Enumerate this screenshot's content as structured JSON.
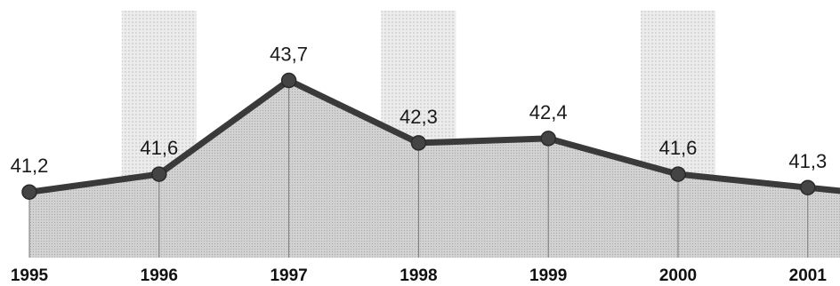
{
  "chart_data": {
    "type": "area",
    "title": "",
    "xlabel": "",
    "ylabel": "",
    "categories": [
      "1995",
      "1996",
      "1997",
      "1998",
      "1999",
      "2000",
      "2001"
    ],
    "series": [
      {
        "values": [
          41.2,
          41.6,
          43.7,
          42.3,
          42.4,
          41.6,
          41.3
        ]
      }
    ],
    "data_labels": [
      "41,2",
      "41,6",
      "43,7",
      "42,3",
      "42,4",
      "41,6",
      "41,3"
    ],
    "ylim": [
      38.5,
      45.5
    ],
    "grid": false,
    "legend": "none",
    "shaded_columns": [
      "1996",
      "1998",
      "2000"
    ],
    "colors": {
      "line": "#3a3a3a",
      "marker": "#444444",
      "area": "#d4d4d4",
      "column_shade": "#e6e6e6",
      "drop_line": "#777777"
    }
  }
}
